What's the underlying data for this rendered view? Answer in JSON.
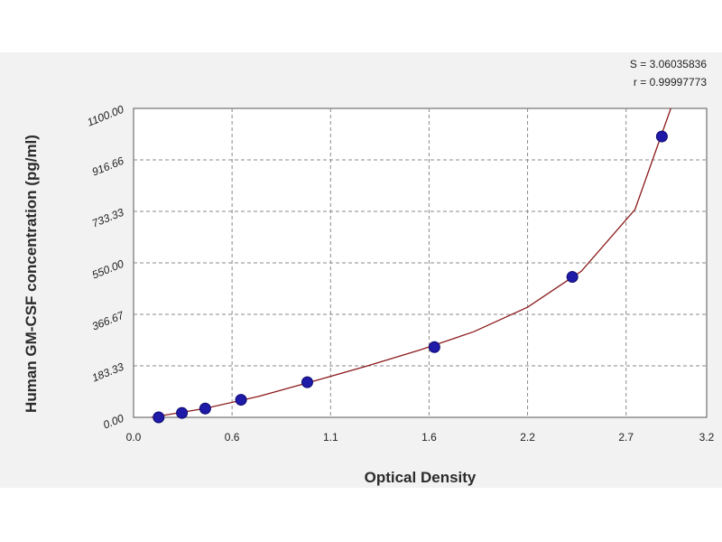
{
  "chart_data": {
    "type": "scatter",
    "title": "",
    "xlabel": "Optical Density",
    "ylabel": "Human GM-CSF concentration (pg/ml)",
    "xlim": [
      0.0,
      3.2
    ],
    "ylim": [
      0.0,
      1100.0
    ],
    "x_ticks": [
      "0.0",
      "0.6",
      "1.1",
      "1.6",
      "2.2",
      "2.7",
      "3.2"
    ],
    "x_tick_values": [
      0.0,
      0.55,
      1.1,
      1.65,
      2.2,
      2.75,
      3.2
    ],
    "y_ticks": [
      "0.00",
      "183.33",
      "366.67",
      "550.00",
      "733.33",
      "916.66",
      "1100.00"
    ],
    "y_tick_values": [
      0.0,
      183.33,
      366.67,
      550.0,
      733.33,
      916.66,
      1100.0
    ],
    "grid": true,
    "series": [
      {
        "points": [
          {
            "x": 0.14,
            "y": 0
          },
          {
            "x": 0.27,
            "y": 15.6
          },
          {
            "x": 0.4,
            "y": 31.3
          },
          {
            "x": 0.6,
            "y": 62.5
          },
          {
            "x": 0.97,
            "y": 125
          },
          {
            "x": 1.68,
            "y": 250
          },
          {
            "x": 2.45,
            "y": 500
          },
          {
            "x": 2.95,
            "y": 1000
          }
        ]
      }
    ],
    "fit_curve": {
      "x": [
        0.1,
        0.4,
        0.7,
        1.0,
        1.3,
        1.6,
        1.9,
        2.2,
        2.5,
        2.8,
        3.0
      ],
      "y": [
        0,
        32,
        75,
        128,
        182,
        240,
        305,
        392,
        520,
        740,
        1100
      ]
    },
    "stats": {
      "s": "S = 3.06035836",
      "r": "r = 0.99997773"
    },
    "colors": {
      "marker": "#1f1aa8",
      "curve": "#8b1a1a",
      "grid": "#8a8a8a",
      "background": "#f2f2f2",
      "plot_area": "#ffffff"
    }
  }
}
